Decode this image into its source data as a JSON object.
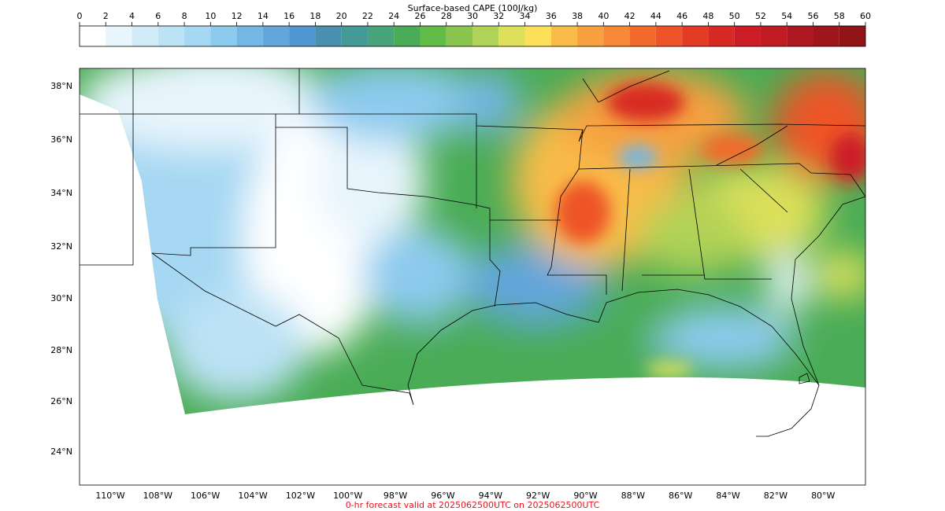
{
  "colorbar": {
    "title": "Surface-based CAPE (100J/kg)",
    "ticks": [
      0,
      2,
      4,
      6,
      8,
      10,
      12,
      14,
      16,
      18,
      20,
      22,
      24,
      26,
      28,
      30,
      32,
      34,
      36,
      38,
      40,
      42,
      44,
      46,
      48,
      50,
      52,
      54,
      56,
      58,
      60
    ],
    "colors": [
      "#ffffff",
      "#e8f5fc",
      "#d2ebf8",
      "#bce2f5",
      "#a6d8f3",
      "#8ccaee",
      "#74b6e4",
      "#62a6dc",
      "#5096d0",
      "#4a90b0",
      "#449a96",
      "#48a47a",
      "#4aac56",
      "#62bc48",
      "#8cc450",
      "#b0d256",
      "#dce05a",
      "#fce05a",
      "#f9bc48",
      "#f6a040",
      "#f68838",
      "#f26a2c",
      "#ee5428",
      "#e43c24",
      "#d82a24",
      "#cc1c26",
      "#c01a22",
      "#ae1820",
      "#9e161c",
      "#901418"
    ]
  },
  "map": {
    "lat_labels": [
      "38°N",
      "36°N",
      "34°N",
      "32°N",
      "30°N",
      "28°N",
      "26°N",
      "24°N"
    ],
    "lon_labels": [
      "110°W",
      "108°W",
      "106°W",
      "104°W",
      "102°W",
      "100°W",
      "98°W",
      "96°W",
      "94°W",
      "92°W",
      "90°W",
      "88°W",
      "86°W",
      "84°W",
      "82°W",
      "80°W"
    ]
  },
  "footer": "0-hr forecast valid at 2025062500UTC on 2025062500UTC"
}
